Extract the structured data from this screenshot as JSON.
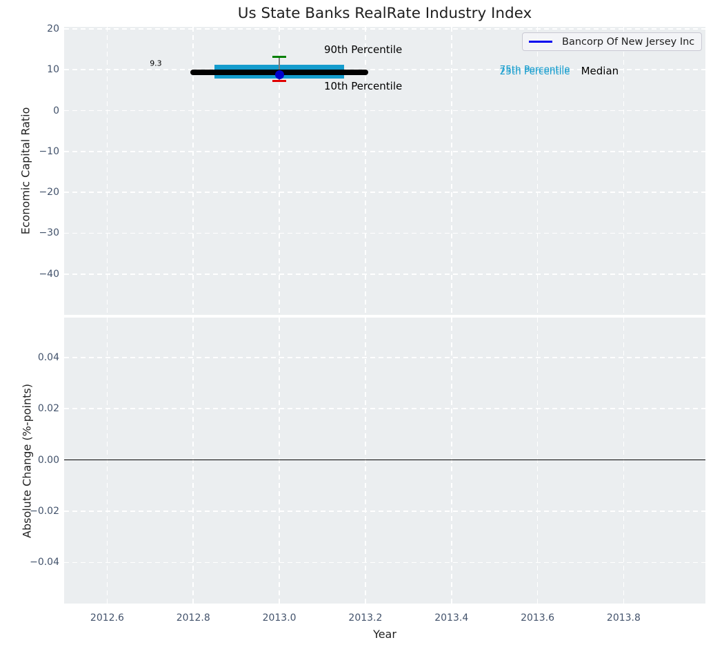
{
  "chart_data": {
    "type": "box",
    "title": "Us State Banks RealRate Industry Index",
    "xlabel": "Year",
    "xlim": [
      2012.5,
      2013.99
    ],
    "xticks": [
      2012.6,
      2012.8,
      2013.0,
      2013.2,
      2013.4,
      2013.6,
      2013.8
    ],
    "xtick_labels": [
      "2012.6",
      "2012.8",
      "2013.0",
      "2013.2",
      "2013.4",
      "2013.6",
      "2013.8"
    ],
    "legend": {
      "label": "Bancorp Of New Jersey Inc",
      "line_color": "#0000ee",
      "position": "upper right"
    },
    "grid": "white dashed",
    "panels": [
      {
        "ylabel": "Economic Capital Ratio",
        "ylim": [
          -50,
          20.5
        ],
        "yticks": [
          20,
          10,
          0,
          -10,
          -20,
          -30,
          -40
        ],
        "ytick_labels": [
          "20",
          "10",
          "0",
          "−10",
          "−20",
          "−30",
          "−40"
        ],
        "industry_percentiles": {
          "x_center": 2013.0,
          "p90": 13.2,
          "p75": 11.2,
          "median": 9.3,
          "p25": 7.8,
          "p10": 7.3,
          "box_x_range": [
            2012.85,
            2013.15
          ],
          "median_x_range": [
            2012.8,
            2013.2
          ],
          "whisker_half_width": 0.016
        },
        "company_point": {
          "x": 2013.0,
          "y": 9.3
        },
        "annotations": [
          {
            "name": "value-label",
            "text": "9.3",
            "x": 2012.713,
            "y": 11.6,
            "size": 11,
            "color": "#000000",
            "anchor": "center"
          },
          {
            "name": "p90-label",
            "text": "90th Percentile",
            "x": 2013.104,
            "y": 14.9,
            "size": 15,
            "color": "#000000",
            "anchor": "left"
          },
          {
            "name": "p10-label",
            "text": "10th Percentile",
            "x": 2013.104,
            "y": 6.0,
            "size": 15,
            "color": "#000000",
            "anchor": "left"
          },
          {
            "name": "p75-label",
            "text": "75th Percentile",
            "x": 2013.512,
            "y": 10.0,
            "size": 13.5,
            "color": "#149ccd",
            "anchor": "left"
          },
          {
            "name": "p25-label",
            "text": "25th Percentile",
            "x": 2013.512,
            "y": 9.6,
            "size": 13.5,
            "color": "#149ccd",
            "anchor": "left"
          },
          {
            "name": "median-label",
            "text": "Median",
            "x": 2013.701,
            "y": 9.7,
            "size": 15,
            "color": "#000000",
            "anchor": "left"
          }
        ]
      },
      {
        "ylabel": "Absolute Change (%-points)",
        "ylim": [
          -0.056,
          0.0555
        ],
        "yticks": [
          0.04,
          0.02,
          0,
          -0.02,
          -0.04
        ],
        "ytick_labels": [
          "0.04",
          "0.02",
          "0.00",
          "−0.02",
          "−0.04"
        ],
        "zero_line": 0
      }
    ],
    "colors": {
      "panel_bg": "#ebeef0",
      "grid": "#ffffff",
      "iqr_box": "#149ccd",
      "median_line": "#000000",
      "p90_whisker": "#008000",
      "p10_whisker": "#e00000",
      "whisker_center_line": "#7a7a7a",
      "company_point": "#0000cc",
      "zero_line": "#000000",
      "tick_label": "#42526b",
      "axis_label": "#1f1f1f"
    }
  }
}
